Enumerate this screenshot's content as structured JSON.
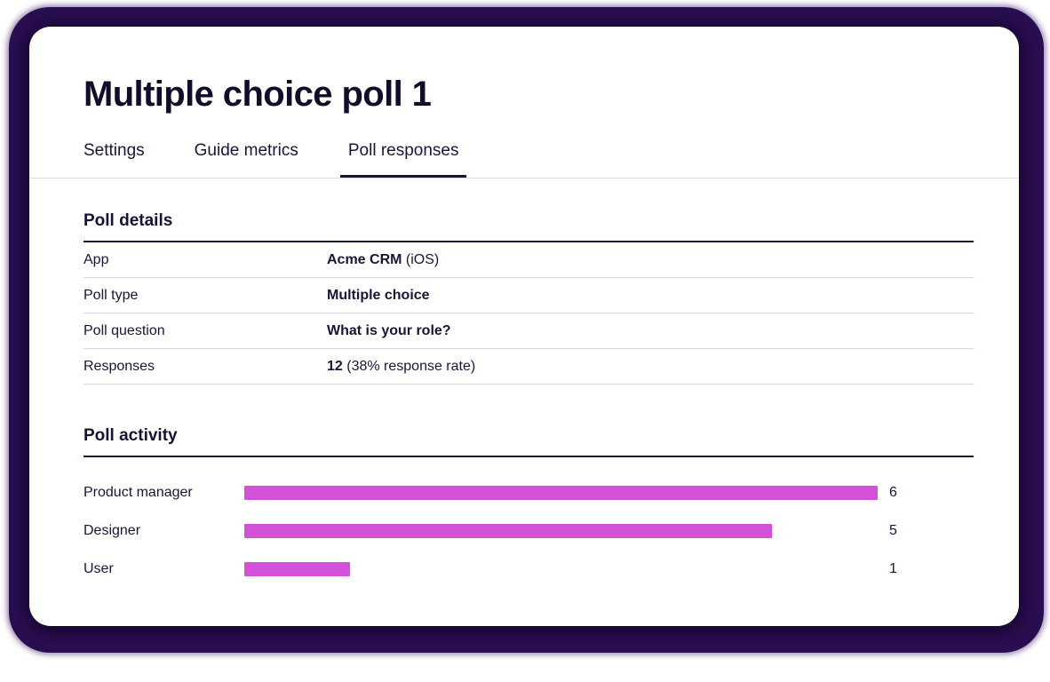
{
  "page_title": "Multiple choice poll 1",
  "tabs": {
    "items": [
      {
        "label": "Settings",
        "active": false
      },
      {
        "label": "Guide metrics",
        "active": false
      },
      {
        "label": "Poll responses",
        "active": true
      }
    ]
  },
  "poll_details": {
    "heading": "Poll details",
    "rows": [
      {
        "label": "App",
        "value_bold": "Acme CRM",
        "value_rest": " (iOS)"
      },
      {
        "label": "Poll type",
        "value_bold": "Multiple choice",
        "value_rest": ""
      },
      {
        "label": "Poll question",
        "value_bold": "What is your role?",
        "value_rest": ""
      },
      {
        "label": "Responses",
        "value_bold": "12",
        "value_rest": " (38% response rate)"
      }
    ]
  },
  "poll_activity": {
    "heading": "Poll activity"
  },
  "chart_data": {
    "type": "bar",
    "orientation": "horizontal",
    "title": "Poll activity",
    "categories": [
      "Product manager",
      "Designer",
      "User"
    ],
    "values": [
      6,
      5,
      1
    ],
    "xlabel": "",
    "ylabel": "",
    "xlim": [
      0,
      6
    ],
    "value_labels": true,
    "grid": false,
    "legend": false,
    "bar_color": "#d351d8"
  },
  "colors": {
    "accent_bar": "#d351d8",
    "text_dark": "#1b1438",
    "frame_purple": "#2a0e52",
    "divider_light": "#d9d6e6"
  }
}
